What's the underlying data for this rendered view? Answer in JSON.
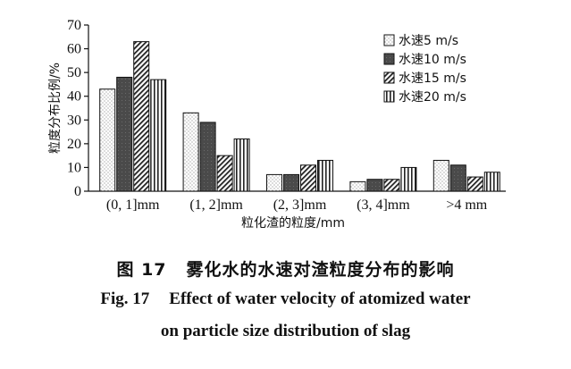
{
  "chart_data": {
    "type": "bar",
    "categories": [
      "(0, 1]mm",
      "(1, 2]mm",
      "(2, 3]mm",
      "(3, 4]mm",
      ">4 mm"
    ],
    "series": [
      {
        "name": "水速5 m/s",
        "values": [
          43,
          33,
          7,
          4,
          13
        ],
        "pattern": "dots"
      },
      {
        "name": "水速10 m/s",
        "values": [
          48,
          29,
          7,
          5,
          11
        ],
        "pattern": "dark"
      },
      {
        "name": "水速15 m/s",
        "values": [
          63,
          15,
          11,
          5,
          6
        ],
        "pattern": "diagonal"
      },
      {
        "name": "水速20 m/s",
        "values": [
          47,
          22,
          13,
          10,
          8
        ],
        "pattern": "vertical"
      }
    ],
    "xlabel": "粒化渣的粒度/mm",
    "ylabel": "粒度分布比例/%",
    "ylim": [
      0,
      70
    ],
    "yticks": [
      0,
      10,
      20,
      30,
      40,
      50,
      60,
      70
    ],
    "grid": false,
    "legend_position": "top-right"
  },
  "caption": {
    "cn_number": "图 17",
    "cn_text": "雾化水的水速对渣粒度分布的影响",
    "en_line1_number": "Fig. 17",
    "en_line1_text": "Effect of water velocity of atomized water",
    "en_line2": "on particle size distribution of slag"
  },
  "colors": {
    "dark_fill": "#4a4a4a",
    "stroke": "#111111",
    "background": "#ffffff"
  }
}
